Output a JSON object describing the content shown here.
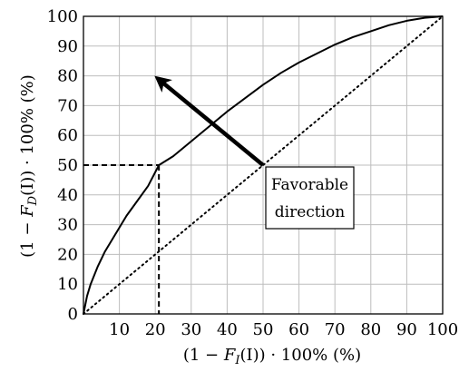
{
  "chart_data": {
    "type": "line",
    "xlabel": "(1 − F_I(I)) · 100% (%)",
    "ylabel": "(1 − F_D(I)) · 100% (%)",
    "xlabel_parts": [
      "(1 − ",
      "F",
      "I",
      "(I)) · 100% (%)"
    ],
    "ylabel_parts": [
      "(1 − ",
      "F",
      "D",
      "(I)) · 100% (%)"
    ],
    "xlim": [
      0,
      100
    ],
    "ylim": [
      0,
      100
    ],
    "x_ticks": [
      10,
      20,
      30,
      40,
      50,
      60,
      70,
      80,
      90,
      100
    ],
    "y_ticks": [
      0,
      10,
      20,
      30,
      40,
      50,
      60,
      70,
      80,
      90,
      100
    ],
    "grid": true,
    "series": [
      {
        "style": "solid",
        "x": [
          0,
          1,
          2,
          4,
          6,
          8,
          10,
          12,
          15,
          18,
          21,
          25,
          30,
          35,
          40,
          45,
          50,
          55,
          60,
          65,
          70,
          75,
          80,
          85,
          90,
          95,
          100
        ],
        "y": [
          0,
          6,
          10,
          16,
          21,
          25,
          29,
          33,
          38,
          43,
          50,
          53,
          58,
          63,
          68,
          72.5,
          77,
          81,
          84.5,
          87.5,
          90.5,
          93,
          95,
          97,
          98.5,
          99.5,
          100
        ]
      },
      {
        "style": "dotted",
        "x": [
          0,
          100
        ],
        "y": [
          0,
          100
        ]
      }
    ],
    "reference_lines": {
      "style": "dashed",
      "x_at": 21,
      "y_at": 50
    },
    "annotations": [
      {
        "type": "arrow",
        "from": [
          50,
          50
        ],
        "to": [
          20,
          80
        ],
        "text_lines": [
          "Favorable",
          "direction"
        ]
      }
    ]
  }
}
